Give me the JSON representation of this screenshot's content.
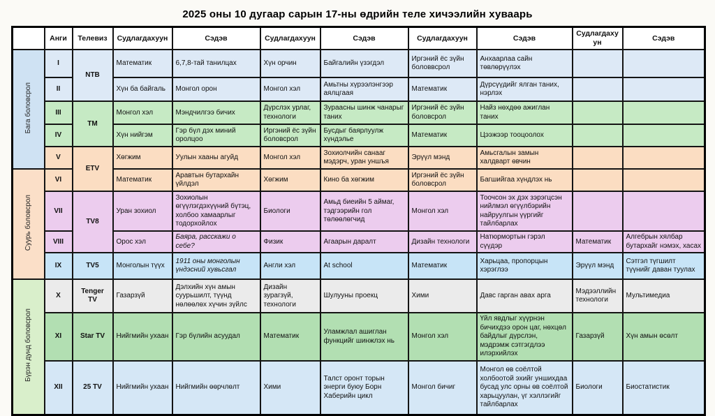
{
  "title": "2025 оны 10 дугаар сарын 17-ны өдрийн теле хичээлийн хуваарь",
  "table": {
    "headers": [
      "",
      "Анги",
      "Телевиз",
      "Судлагдахуун",
      "Сэдэв",
      "Судлагдахуун",
      "Сэдэв",
      "Судлагдахуун",
      "Сэдэв",
      "Судлагдахуун",
      "Сэдэв"
    ],
    "groups": [
      {
        "label": "Бага боловсрол",
        "rows": 5,
        "bg": "#cfe2f3"
      },
      {
        "label": "Суурь боловсрол",
        "rows": 4,
        "bg": "#fbdfc8"
      },
      {
        "label": "Бүрэн дунд боловсрол",
        "rows": 3,
        "bg": "#d9efcb"
      }
    ],
    "channels": [
      {
        "name": "NTB",
        "rows": 2,
        "bg": "#dde9f6"
      },
      {
        "name": "TM",
        "rows": 2,
        "bg": "#c6eac4"
      },
      {
        "name": "ETV",
        "rows": 2,
        "bg": "#fbddc2"
      },
      {
        "name": "TV8",
        "rows": 2,
        "bg": "#ecccee"
      },
      {
        "name": "TV5",
        "rows": 1,
        "bg": "#c7e4f7"
      },
      {
        "name": "Tenger TV",
        "rows": 1,
        "bg": "#ebebeb"
      },
      {
        "name": "Star TV",
        "rows": 1,
        "bg": "#b2dfb2"
      },
      {
        "name": "25 TV",
        "rows": 1,
        "bg": "#d5e7f6"
      }
    ],
    "rows": [
      {
        "class": "I",
        "bg": "#dde9f6",
        "cells": [
          "Математик",
          "6,7,8-тай танилцах",
          "Хүн орчин",
          "Байгалийн үзэгдэл",
          "Иргэний ёс зүйн боловвсрол",
          "Анхаарлаа сайн төвлөрүүлэх",
          "",
          ""
        ]
      },
      {
        "class": "II",
        "bg": "#dde9f6",
        "cells": [
          "Хүн ба байгаль",
          "Монгол орон",
          "Монгол хэл",
          "Амьтны хүрээлэнгээр аялцгаая",
          "Математик",
          "Дүрсүүдийг ялган таних, нэрлэх",
          "",
          ""
        ]
      },
      {
        "class": "III",
        "bg": "#c6eac4",
        "cells": [
          "Монгол хэл",
          "Мэндчилгээ бичих",
          "Дүрслэх урлаг, технологи",
          "Зураасны шинж чанарыг таних",
          "Иргэний ёс зүйн боловсрол",
          "Найз нөхдөө ажиглан таних",
          "",
          ""
        ]
      },
      {
        "class": "IV",
        "bg": "#c6eac4",
        "cells": [
          "Хүн нийгэм",
          "Гэр бүл дэх миний оролцоо",
          "Иргэний ёс зүйн боловсрол",
          "Бусдыг баярлуулж хүндэлье",
          "Математик",
          "Цээжээр тооцоолох",
          "",
          ""
        ]
      },
      {
        "class": "V",
        "bg": "#fbddc2",
        "cells": [
          "Хөгжим",
          "Уулын хааны агуйд",
          "Монгол хэл",
          "Зохиолчийн санааг мэдэрч, уран уншъя",
          "Эрүүл мэнд",
          "Амьсгалын замын халдварт өвчин",
          "",
          ""
        ]
      },
      {
        "class": "VI",
        "bg": "#fbddc2",
        "cells": [
          "Математик",
          "Аравтын бутархайн үйлдэл",
          "Хөгжим",
          "Кино ба хөгжим",
          "Иргэний ёс зүйн боловсрол",
          "Багшийгаа хүндлэх нь",
          "",
          ""
        ]
      },
      {
        "class": "VII",
        "bg": "#ecccee",
        "cells": [
          "Уран зохиол",
          "Зохиолын өгүүлэгдэхүүний бүтэц, холбоо хамаарлыг тодорхойлох",
          "Биологи",
          "Амьд биеийн 5 аймаг, тэдгээрийн гол төлөөлөгчид",
          "Монгол хэл",
          "Тоочсон эх дэх зэрэгцсэн нийлмэл өгүүлбэрийн найруулгын үүргийг тайлбарлах",
          "",
          ""
        ]
      },
      {
        "class": "VIII",
        "bg": "#ecccee",
        "italic": [
          1
        ],
        "cells": [
          "Орос хэл",
          "Баяра, расскажи о себе?",
          "Физик",
          "Агаарын даралт",
          "Дизайн технологи",
          "Натюрмортын гэрэл сүүдэр",
          "Математик",
          "Алгебрын хялбар бутархайг нэмэх, хасах"
        ]
      },
      {
        "class": "IX",
        "bg": "#c7e4f7",
        "italic": [
          1
        ],
        "cells": [
          "Монголын түүх",
          "1911 оны монголын үндэсний хувьсгал",
          "Англи хэл",
          "At school",
          "Математик",
          "Харьцаа, пропорцын хэрэглээ",
          "Эрүүл мэнд",
          "Сэтгэл түгшилт түүнийг даван туулах"
        ]
      },
      {
        "class": "X",
        "bg": "#ebebeb",
        "cells": [
          "Газарзүй",
          "Дэлхийн хүн амын суурьшилт, түүнд нөлөөлөх хүчин зүйлс",
          "Дизайн зурагзүй, технологи",
          "Шулууны проекц",
          "Хими",
          "Давс гарган авах арга",
          "Мэдээллийн технологи",
          "Мультимедиа"
        ]
      },
      {
        "class": "XI",
        "bg": "#b2dfb2",
        "cells": [
          "Нийгмийн ухаан",
          "Гэр бүлийн асуудал",
          "Математик",
          "Уламжлал ашиглан функцийг шинжлэх нь",
          "Монгол хэл",
          "Үйл явдлыг хүүрнэн бичихдээ орон цаг, нөхцөл байдлыг дүрслэн, мэдрэмж сэтгэгдлээ илэрхийлэх",
          "Газарзүй",
          "Хүн амын өсөлт"
        ]
      },
      {
        "class": "XII",
        "bg": "#d5e7f6",
        "cells": [
          "Нийгмийн ухаан",
          "Нийгмийн өөрчлөлт",
          "Хими",
          "Талст оронт торын энерги буюу Борн Хаберийн цикл",
          "Монгол бичиг",
          "Монгол өв соёлтой холбоотой эхийг уншихдаа бусад улс орны өв соёлтой харьцуулан, үг хэллэгийг тайлбарлах",
          "Биологи",
          "Биостатистик"
        ]
      }
    ]
  },
  "colors": {
    "border": "#141414",
    "header_bg": "#ffffff",
    "page_bg": "#fbfaf6"
  }
}
